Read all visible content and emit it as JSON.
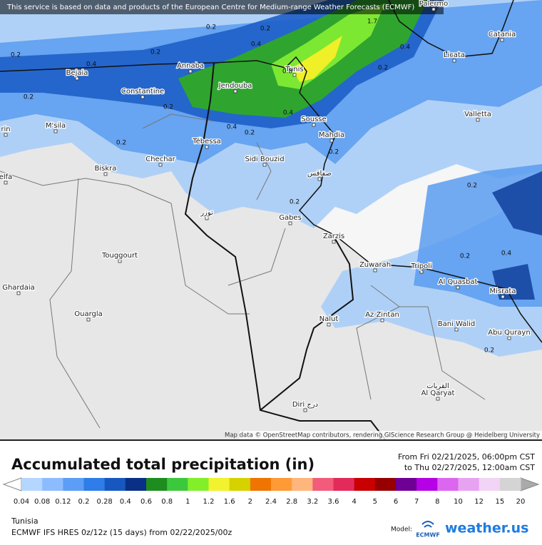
{
  "header": {
    "notice": "This service is based on data and products of the European Centre for Medium-range Weather Forecasts (ECMWF)"
  },
  "map": {
    "cities": [
      "Palermo",
      "Catania",
      "Licata",
      "Valletta",
      "Bejaia",
      "Annaba",
      "Tunis",
      "Constantine",
      "Jendouba",
      "M'sila",
      "Sousse",
      "Mahdia",
      "Tébessa",
      "Chechar",
      "Sidi Bouzid",
      "Biskra",
      "صفاقس",
      "توزر",
      "Gabes",
      "Zarzis",
      "Touggourt",
      "Zuwarah",
      "Tripoli",
      "Al Quasbat",
      "Misrata",
      "Ghardaia",
      "Ouargla",
      "Nalut",
      "Az Zintan",
      "Bani Walid",
      "Abu Qurayn",
      "القريات",
      "Al Qaryat",
      "Diri درج",
      "elfa",
      "rin"
    ],
    "contour_labels": [
      "0.2",
      "0.2",
      "0.2",
      "0.4",
      "0.2",
      "0.4",
      "0.2",
      "0.4",
      "0.8",
      "0.4",
      "0.2",
      "0.2",
      "0.4",
      "0.2",
      "0.2",
      "0.2",
      "0.2",
      "0.4",
      "0.2",
      "0.2",
      "0.2",
      "1.7"
    ],
    "attribution": "Map data © OpenStreetMap contributors, rendering GIScience Research Group @ Heidelberg University"
  },
  "legend": {
    "title": "Accumulated total precipitation (in)",
    "period_from": "From Fri 02/21/2025, 06:00pm CST",
    "period_to": "to Thu 02/27/2025, 12:00am CST",
    "ticks": [
      0.04,
      0.08,
      0.12,
      0.2,
      0.28,
      0.4,
      0.6,
      0.8,
      1,
      1.2,
      1.6,
      2,
      2.4,
      2.8,
      3.2,
      3.6,
      4,
      5,
      6,
      7,
      8,
      10,
      12,
      15,
      20
    ]
  },
  "footer": {
    "region": "Tunisia",
    "model_run": "ECMWF IFS HRES 0z/12z (15 days) from  02/22/2025/00z",
    "model_label": "Model:",
    "model_logo": "ECMWF",
    "brand": "weather.us"
  }
}
